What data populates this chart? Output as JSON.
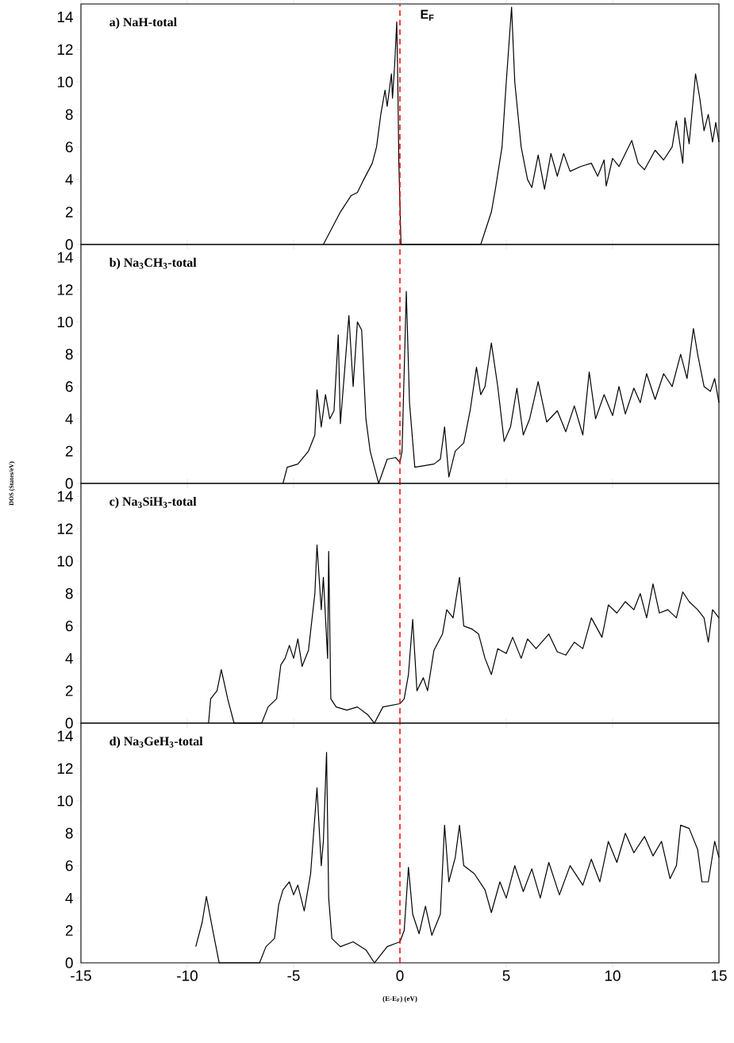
{
  "chart_data": [
    {
      "type": "line",
      "title": "a) NaH-total",
      "color": "#000000",
      "xlim": [
        -15,
        15
      ],
      "ylim": [
        0,
        14.8
      ],
      "xticks": [
        -15,
        -10,
        -5,
        0,
        5,
        10,
        15
      ],
      "yticks": [
        0,
        2,
        4,
        6,
        8,
        10,
        12,
        14
      ],
      "tick_labels": "y",
      "ref_lines": [
        {
          "axis": "x",
          "value": 0,
          "label": "E$_{F}$",
          "color": "#ff0000",
          "line_style": "dashed"
        }
      ],
      "x": [
        -3.6,
        -2.8,
        -2.3,
        -2.0,
        -1.7,
        -1.3,
        -1.1,
        -0.9,
        -0.7,
        -0.6,
        -0.4,
        -0.35,
        -0.25,
        -0.15,
        -0.1,
        -0.05,
        0.05,
        3.8,
        4.3,
        4.5,
        4.8,
        5.0,
        5.25,
        5.4,
        5.7,
        6.0,
        6.2,
        6.5,
        6.8,
        7.1,
        7.4,
        7.7,
        8.0,
        8.5,
        9.0,
        9.3,
        9.6,
        9.7,
        10.0,
        10.3,
        10.9,
        11.2,
        11.5,
        12.0,
        12.4,
        12.8,
        13.0,
        13.3,
        13.4,
        13.6,
        13.9,
        14.1,
        14.3,
        14.5,
        14.7,
        14.85,
        15.0
      ],
      "values": [
        0,
        2,
        3,
        3.2,
        4,
        5,
        6,
        8,
        9.5,
        8.5,
        10.5,
        9,
        11,
        13.7,
        10,
        5,
        0,
        0,
        2,
        3.5,
        6,
        10,
        14.6,
        10,
        6,
        4,
        3.5,
        5.5,
        3.4,
        5.6,
        4.2,
        5.6,
        4.5,
        4.8,
        5,
        4.2,
        5.2,
        3.6,
        5.3,
        4.8,
        6.4,
        5,
        4.6,
        5.8,
        5.2,
        6,
        7.6,
        5,
        7.8,
        6.2,
        10.5,
        9,
        7,
        8,
        6.3,
        7.5,
        6.3
      ]
    },
    {
      "type": "line",
      "title": "b) Na$_{3}$CH$_{3}$-total",
      "color": "#000000",
      "xlim": [
        -15,
        15
      ],
      "ylim": [
        0,
        14.8
      ],
      "xticks": [
        -15,
        -10,
        -5,
        0,
        5,
        10,
        15
      ],
      "yticks": [
        0,
        2,
        4,
        6,
        8,
        10,
        12,
        14
      ],
      "tick_labels": "y",
      "ref_lines": [
        {
          "axis": "x",
          "value": 0,
          "color": "#ff0000",
          "line_style": "dashed"
        }
      ],
      "x": [
        -5.5,
        -5.3,
        -4.8,
        -4.3,
        -4.0,
        -3.9,
        -3.7,
        -3.5,
        -3.3,
        -3.1,
        -2.9,
        -2.8,
        -2.6,
        -2.4,
        -2.2,
        -2.0,
        -1.8,
        -1.6,
        -1.4,
        -1.1,
        -1.0,
        -0.6,
        -0.2,
        0.0,
        0.1,
        0.3,
        0.45,
        0.7,
        1.6,
        1.9,
        2.1,
        2.3,
        2.6,
        3.0,
        3.3,
        3.6,
        3.8,
        4.0,
        4.3,
        4.6,
        4.9,
        5.2,
        5.5,
        5.8,
        6.1,
        6.5,
        6.9,
        7.4,
        7.8,
        8.2,
        8.6,
        8.9,
        9.2,
        9.6,
        10.0,
        10.3,
        10.6,
        11.0,
        11.3,
        11.6,
        12.0,
        12.4,
        12.8,
        13.2,
        13.5,
        13.8,
        14.0,
        14.3,
        14.6,
        14.8,
        15.0
      ],
      "values": [
        0,
        1,
        1.2,
        2,
        3,
        5.8,
        3.5,
        5.5,
        4,
        4.5,
        9.2,
        3.7,
        7,
        10.4,
        6,
        10,
        9.5,
        4,
        2,
        0.5,
        0,
        1.5,
        1.6,
        1.3,
        2,
        11.9,
        5,
        1,
        1.2,
        1.5,
        3.5,
        0.4,
        2,
        2.5,
        4.5,
        7.2,
        5.5,
        6,
        8.7,
        6,
        2.6,
        3.5,
        5.9,
        3,
        4,
        6.3,
        3.8,
        4.5,
        3.2,
        4.8,
        3,
        6.9,
        4,
        5.5,
        4.2,
        6,
        4.3,
        5.9,
        5,
        6.8,
        5.2,
        6.8,
        6,
        8,
        6.5,
        9.6,
        8,
        6,
        5.7,
        6.5,
        5
      ]
    },
    {
      "type": "line",
      "title": "c) Na$_{3}$SiH$_{3}$-total",
      "ylabel": "DOS (States/eV)",
      "color": "#000000",
      "xlim": [
        -15,
        15
      ],
      "ylim": [
        0,
        14.8
      ],
      "xticks": [
        -15,
        -10,
        -5,
        0,
        5,
        10,
        15
      ],
      "yticks": [
        0,
        2,
        4,
        6,
        8,
        10,
        12,
        14
      ],
      "tick_labels": "y",
      "ref_lines": [
        {
          "axis": "x",
          "value": 0,
          "color": "#ff0000",
          "line_style": "dashed"
        }
      ],
      "x": [
        -9.0,
        -8.9,
        -8.6,
        -8.4,
        -8.1,
        -7.8,
        -6.5,
        -6.2,
        -5.8,
        -5.6,
        -5.4,
        -5.2,
        -5.0,
        -4.8,
        -4.6,
        -4.3,
        -4.0,
        -3.9,
        -3.7,
        -3.6,
        -3.4,
        -3.35,
        -3.25,
        -3.0,
        -2.5,
        -2.0,
        -1.5,
        -1.2,
        -0.8,
        0.0,
        0.2,
        0.4,
        0.6,
        0.8,
        1.1,
        1.3,
        1.6,
        2.0,
        2.2,
        2.5,
        2.8,
        3.0,
        3.4,
        3.7,
        4.0,
        4.3,
        4.6,
        5.0,
        5.3,
        5.7,
        6.0,
        6.4,
        7.0,
        7.4,
        7.8,
        8.2,
        8.6,
        9.0,
        9.5,
        9.8,
        10.2,
        10.6,
        11.0,
        11.3,
        11.6,
        11.9,
        12.2,
        12.6,
        13.0,
        13.3,
        13.6,
        14.0,
        14.3,
        14.5,
        14.7,
        15.0
      ],
      "values": [
        0,
        1.5,
        2,
        3.3,
        1.5,
        0,
        0,
        1,
        1.5,
        3.6,
        4,
        4.8,
        4,
        5.2,
        3.5,
        4.5,
        8,
        11,
        7,
        9,
        4,
        10.6,
        1.5,
        1,
        0.8,
        1,
        0.5,
        0,
        1,
        1.2,
        1.5,
        3,
        6.4,
        2,
        2.8,
        2,
        4.5,
        5.5,
        7,
        6.5,
        9,
        6,
        5.8,
        5.5,
        4,
        3,
        4.6,
        4.3,
        5.3,
        4,
        5.2,
        4.6,
        5.5,
        4.4,
        4.2,
        5,
        4.6,
        6.5,
        5.3,
        7.3,
        6.8,
        7.5,
        7,
        8,
        6.5,
        8.6,
        6.8,
        7,
        6.5,
        8.1,
        7.5,
        7,
        6.5,
        5,
        7,
        6.5
      ]
    },
    {
      "type": "line",
      "title": "d) Na$_{3}$GeH$_{3}$-total",
      "xlabel": "(E-E$_{F}$) (eV)",
      "color": "#000000",
      "xlim": [
        -15,
        15
      ],
      "ylim": [
        0,
        14.8
      ],
      "xticks": [
        -15,
        -10,
        -5,
        0,
        5,
        10,
        15
      ],
      "yticks": [
        0,
        2,
        4,
        6,
        8,
        10,
        12,
        14
      ],
      "ref_lines": [
        {
          "axis": "x",
          "value": 0,
          "color": "#ff0000",
          "line_style": "dashed"
        }
      ],
      "x": [
        -9.6,
        -9.3,
        -9.1,
        -8.8,
        -8.5,
        -6.6,
        -6.3,
        -5.9,
        -5.7,
        -5.5,
        -5.2,
        -5.0,
        -4.8,
        -4.5,
        -4.2,
        -3.9,
        -3.7,
        -3.6,
        -3.45,
        -3.35,
        -3.2,
        -2.8,
        -2.2,
        -1.6,
        -1.2,
        -0.6,
        -0.2,
        0.0,
        0.2,
        0.4,
        0.6,
        0.9,
        1.2,
        1.5,
        1.9,
        2.1,
        2.3,
        2.6,
        2.8,
        3.0,
        3.5,
        4.0,
        4.3,
        4.7,
        5.0,
        5.4,
        5.8,
        6.2,
        6.6,
        7.0,
        7.5,
        8.0,
        8.6,
        9.0,
        9.4,
        9.8,
        10.2,
        10.6,
        11.0,
        11.5,
        11.9,
        12.3,
        12.7,
        13.0,
        13.2,
        13.6,
        14.0,
        14.2,
        14.5,
        14.8,
        15.0
      ],
      "values": [
        1,
        2.5,
        4.1,
        2,
        0,
        0,
        1,
        1.5,
        3.6,
        4.5,
        5,
        4.2,
        4.8,
        3.2,
        5.5,
        10.8,
        6,
        7.5,
        13,
        4,
        1.5,
        1,
        1.3,
        0.8,
        0,
        1,
        1.2,
        1.3,
        2,
        5.9,
        3,
        1.8,
        3.5,
        1.7,
        3,
        8.5,
        5,
        6.5,
        8.5,
        6,
        5.5,
        4.5,
        3.1,
        5,
        4,
        6,
        4.4,
        5.8,
        4,
        6.2,
        4.2,
        6,
        4.8,
        6.4,
        5,
        7.5,
        6.2,
        8,
        6.8,
        7.8,
        6.6,
        7.5,
        5.2,
        6,
        8.5,
        8.3,
        7,
        5,
        5,
        7.5,
        6.5
      ]
    }
  ]
}
